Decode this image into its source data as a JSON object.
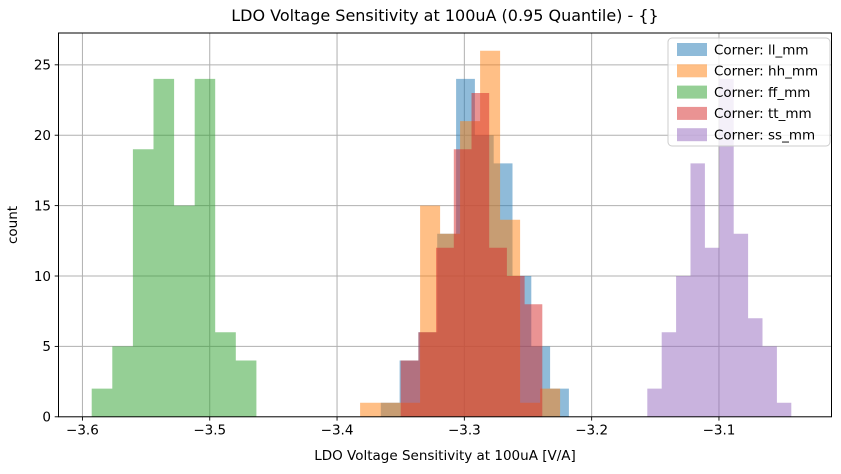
{
  "chart_data": {
    "type": "histogram",
    "title": "LDO Voltage Sensitivity at 100uA (0.95 Quantile) - {}",
    "xlabel": "LDO Voltage Sensitivity at 100uA [V/A]",
    "ylabel": "count",
    "xlim": [
      -3.6188,
      -3.0116
    ],
    "ylim": [
      0,
      27.26
    ],
    "grid": true,
    "bar_alpha": 0.5,
    "gridline_color": "#b0b0b0",
    "legend_position": "upper right",
    "xticks": {
      "values": [
        -3.6,
        -3.5,
        -3.4,
        -3.3,
        -3.2,
        -3.1
      ],
      "labels": [
        "−3.6",
        "−3.5",
        "−3.4",
        "−3.3",
        "−3.2",
        "−3.1"
      ]
    },
    "yticks": {
      "values": [
        0,
        5,
        10,
        15,
        20,
        25
      ],
      "labels": [
        "0",
        "5",
        "10",
        "15",
        "20",
        "25"
      ]
    },
    "series": [
      {
        "name": "ll_mm",
        "label": "Corner: ll_mm",
        "color": "#1f77b4",
        "bin_start": -3.3656,
        "bin_width": 0.01477,
        "counts": [
          1,
          4,
          6,
          13,
          24,
          20,
          18,
          10,
          5,
          2
        ]
      },
      {
        "name": "hh_mm",
        "label": "Corner: hh_mm",
        "color": "#ff7f0e",
        "bin_start": -3.3819,
        "bin_width": 0.01571,
        "counts": [
          1,
          1,
          1,
          15,
          13,
          21,
          26,
          14,
          1,
          2
        ]
      },
      {
        "name": "ff_mm",
        "label": "Corner: ff_mm",
        "color": "#2ca02c",
        "bin_start": -3.5927,
        "bin_width": 0.01617,
        "counts": [
          2,
          5,
          19,
          24,
          15,
          24,
          6,
          4
        ]
      },
      {
        "name": "tt_mm",
        "label": "Corner: tt_mm",
        "color": "#d62728",
        "bin_start": -3.35,
        "bin_width": 0.0139,
        "counts": [
          4,
          6,
          12,
          19,
          23,
          12,
          10,
          8
        ]
      },
      {
        "name": "ss_mm",
        "label": "Corner: ss_mm",
        "color": "#9467bd",
        "bin_start": -3.1563,
        "bin_width": 0.01131,
        "counts": [
          2,
          6,
          10,
          18,
          12,
          24,
          13,
          7,
          5,
          1
        ]
      }
    ]
  }
}
